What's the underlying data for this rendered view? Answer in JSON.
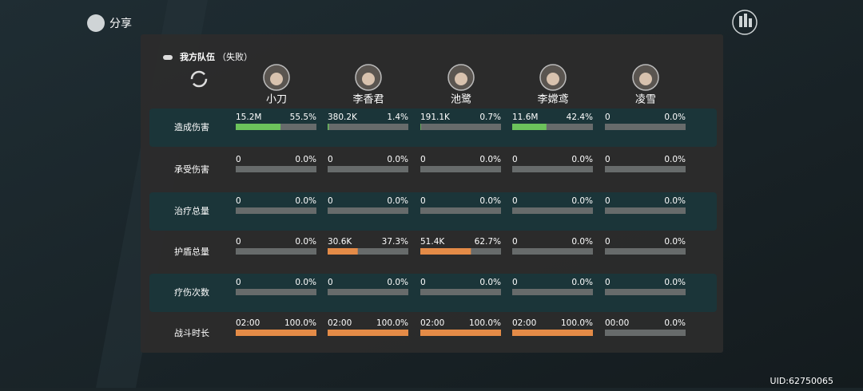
{
  "top_bar": {
    "share": "分享",
    "uid": "UID:62750065"
  },
  "team": {
    "title": "我方队伍",
    "status": "（失败）",
    "members": [
      {
        "name": "小刀"
      },
      {
        "name": "李香君"
      },
      {
        "name": "池鹭"
      },
      {
        "name": "李嫦鸢"
      },
      {
        "name": "凌雪"
      }
    ]
  },
  "stats": {
    "rows": [
      {
        "label": "造成伤害",
        "bar_color": "#6cc35b",
        "cells": [
          {
            "amount": "15.2M",
            "share": 55.5,
            "share_label": "55.5%"
          },
          {
            "amount": "380.2K",
            "share": 1.4,
            "share_label": "1.4%"
          },
          {
            "amount": "191.1K",
            "share": 0.7,
            "share_label": "0.7%"
          },
          {
            "amount": "11.6M",
            "share": 42.4,
            "share_label": "42.4%"
          },
          {
            "amount": "0",
            "share": 0,
            "share_label": "0.0%"
          }
        ]
      },
      {
        "label": "承受伤害",
        "cells": [
          {
            "amount": "0",
            "share": 0,
            "share_label": "0.0%"
          },
          {
            "amount": "0",
            "share": 0,
            "share_label": "0.0%"
          },
          {
            "amount": "0",
            "share": 0,
            "share_label": "0.0%"
          },
          {
            "amount": "0",
            "share": 0,
            "share_label": "0.0%"
          },
          {
            "amount": "0",
            "share": 0,
            "share_label": "0.0%"
          }
        ]
      },
      {
        "label": "治疗总量",
        "cells": [
          {
            "amount": "0",
            "share": 0,
            "share_label": "0.0%"
          },
          {
            "amount": "0",
            "share": 0,
            "share_label": "0.0%"
          },
          {
            "amount": "0",
            "share": 0,
            "share_label": "0.0%"
          },
          {
            "amount": "0",
            "share": 0,
            "share_label": "0.0%"
          },
          {
            "amount": "0",
            "share": 0,
            "share_label": "0.0%"
          }
        ]
      },
      {
        "label": "护盾总量",
        "bar_color": "#e48b47",
        "cells": [
          {
            "amount": "0",
            "share": 0,
            "share_label": "0.0%"
          },
          {
            "amount": "30.6K",
            "share": 37.3,
            "share_label": "37.3%"
          },
          {
            "amount": "51.4K",
            "share": 62.7,
            "share_label": "62.7%"
          },
          {
            "amount": "0",
            "share": 0,
            "share_label": "0.0%"
          },
          {
            "amount": "0",
            "share": 0,
            "share_label": "0.0%"
          }
        ]
      },
      {
        "label": "疗伤次数",
        "cells": [
          {
            "amount": "0",
            "share": 0,
            "share_label": "0.0%"
          },
          {
            "amount": "0",
            "share": 0,
            "share_label": "0.0%"
          },
          {
            "amount": "0",
            "share": 0,
            "share_label": "0.0%"
          },
          {
            "amount": "0",
            "share": 0,
            "share_label": "0.0%"
          },
          {
            "amount": "0",
            "share": 0,
            "share_label": "0.0%"
          }
        ]
      },
      {
        "label": "战斗时长",
        "bar_color": "#e48b47",
        "cells": [
          {
            "amount": "02:00",
            "share": 100,
            "share_label": "100.0%"
          },
          {
            "amount": "02:00",
            "share": 100,
            "share_label": "100.0%"
          },
          {
            "amount": "02:00",
            "share": 100,
            "share_label": "100.0%"
          },
          {
            "amount": "02:00",
            "share": 100,
            "share_label": "100.0%"
          },
          {
            "amount": "00:00",
            "share": 0,
            "share_label": "0.0%"
          }
        ]
      }
    ]
  }
}
